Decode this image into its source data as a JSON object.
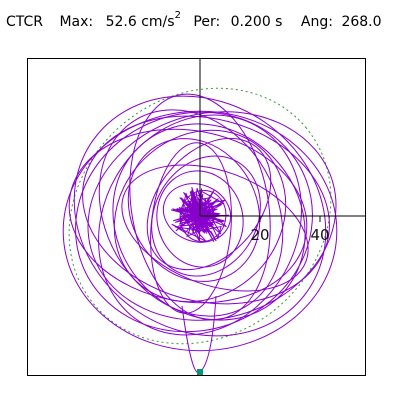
{
  "header": {
    "station": "CTCR",
    "max_label": "Max:",
    "max_value": "52.6 cm/s",
    "max_exp": "2",
    "per_label": "Per:",
    "per_value": "0.200 s",
    "ang_label": "Ang:",
    "ang_value": "268.0"
  },
  "chart_data": {
    "type": "line",
    "title": "",
    "xlabel": "",
    "ylabel": "",
    "x_ticks": [
      20,
      40
    ],
    "x_tick_labels": [
      "20",
      "40"
    ],
    "xlim": [
      -52,
      58
    ],
    "ylim": [
      -52,
      52
    ],
    "series": [
      {
        "values_note": "",
        "orbits": [
          {
            "cx": 0,
            "cy": 0,
            "rx": 5,
            "ry": 5,
            "rot": 0
          },
          {
            "cx": 1,
            "cy": 0,
            "rx": 8,
            "ry": 9,
            "rot": 10
          },
          {
            "cx": -1,
            "cy": 1,
            "rx": 12,
            "ry": 10,
            "rot": 20
          },
          {
            "cx": 0,
            "cy": -1,
            "rx": 15,
            "ry": 17,
            "rot": -15
          },
          {
            "cx": 2,
            "cy": 0,
            "rx": 18,
            "ry": 22,
            "rot": 30
          },
          {
            "cx": -2,
            "cy": 2,
            "rx": 22,
            "ry": 26,
            "rot": -30
          },
          {
            "cx": 0,
            "cy": 0,
            "rx": 28,
            "ry": 32,
            "rot": 45
          },
          {
            "cx": 3,
            "cy": -2,
            "rx": 32,
            "ry": 36,
            "rot": -40
          },
          {
            "cx": -3,
            "cy": 1,
            "rx": 38,
            "ry": 30,
            "rot": 60
          },
          {
            "cx": 0,
            "cy": -3,
            "rx": 40,
            "ry": 34,
            "rot": -60
          },
          {
            "cx": 2,
            "cy": 2,
            "rx": 44,
            "ry": 32,
            "rot": 15
          },
          {
            "cx": -2,
            "cy": -2,
            "rx": 42,
            "ry": 38,
            "rot": -20
          },
          {
            "cx": 4,
            "cy": 0,
            "rx": 36,
            "ry": 44,
            "rot": 75
          },
          {
            "cx": 0,
            "cy": 3,
            "rx": 24,
            "ry": 40,
            "rot": -10
          },
          {
            "cx": -4,
            "cy": 0,
            "rx": 30,
            "ry": 42,
            "rot": 100
          },
          {
            "cx": 5,
            "cy": -4,
            "rx": 20,
            "ry": 34,
            "rot": -70
          },
          {
            "cx": 0,
            "cy": 0,
            "rx": 46,
            "ry": 40,
            "rot": 35
          },
          {
            "cx": -3,
            "cy": -4,
            "rx": 14,
            "ry": 30,
            "rot": 5
          },
          {
            "cx": 3,
            "cy": 4,
            "rx": 26,
            "ry": 18,
            "rot": -50
          },
          {
            "cx": 0,
            "cy": -5,
            "rx": 48,
            "ry": 42,
            "rot": 0
          }
        ],
        "color": "#8800cc"
      }
    ],
    "envelope_color": "#339933",
    "axis_color": "#000000",
    "marker_color": "#009977",
    "marker_point": [
      0,
      -52
    ]
  }
}
